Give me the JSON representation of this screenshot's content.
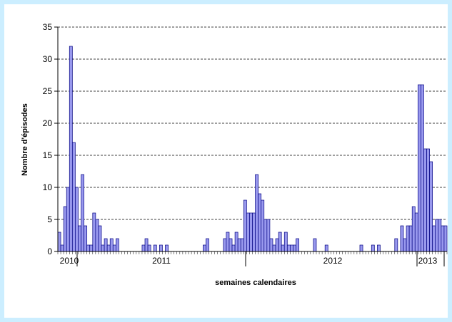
{
  "chart_data": {
    "type": "bar",
    "title": "",
    "xlabel": "semaines calendaires",
    "ylabel": "Nombre d'épisodes",
    "ylim": [
      0,
      35
    ],
    "yticks": [
      0,
      5,
      10,
      15,
      20,
      25,
      30,
      35
    ],
    "grid": "horizontal dashed",
    "years": [
      "2010",
      "2011",
      "2012",
      "2013"
    ],
    "bar_color": "#9999ee",
    "bar_edge": "#000080",
    "background": "#cceeff",
    "values": [
      3,
      1,
      7,
      10,
      32,
      17,
      10,
      4,
      12,
      4,
      1,
      1,
      6,
      5,
      4,
      1,
      2,
      1,
      2,
      1,
      2,
      0,
      0,
      0,
      0,
      0,
      0,
      0,
      0,
      1,
      2,
      1,
      0,
      1,
      0,
      1,
      0,
      1,
      0,
      0,
      0,
      0,
      0,
      0,
      0,
      0,
      0,
      0,
      0,
      0,
      1,
      2,
      0,
      0,
      0,
      0,
      0,
      2,
      3,
      2,
      1,
      3,
      2,
      2,
      8,
      6,
      6,
      6,
      12,
      9,
      8,
      5,
      5,
      2,
      1,
      2,
      3,
      1,
      3,
      1,
      1,
      1,
      2,
      0,
      0,
      0,
      0,
      0,
      2,
      0,
      0,
      0,
      1,
      0,
      0,
      0,
      0,
      0,
      0,
      0,
      0,
      0,
      0,
      0,
      1,
      0,
      0,
      0,
      1,
      0,
      1,
      0,
      0,
      0,
      0,
      0,
      2,
      0,
      4,
      2,
      4,
      4,
      7,
      6,
      26,
      26,
      16,
      16,
      14,
      4,
      5,
      5,
      4,
      4
    ]
  }
}
